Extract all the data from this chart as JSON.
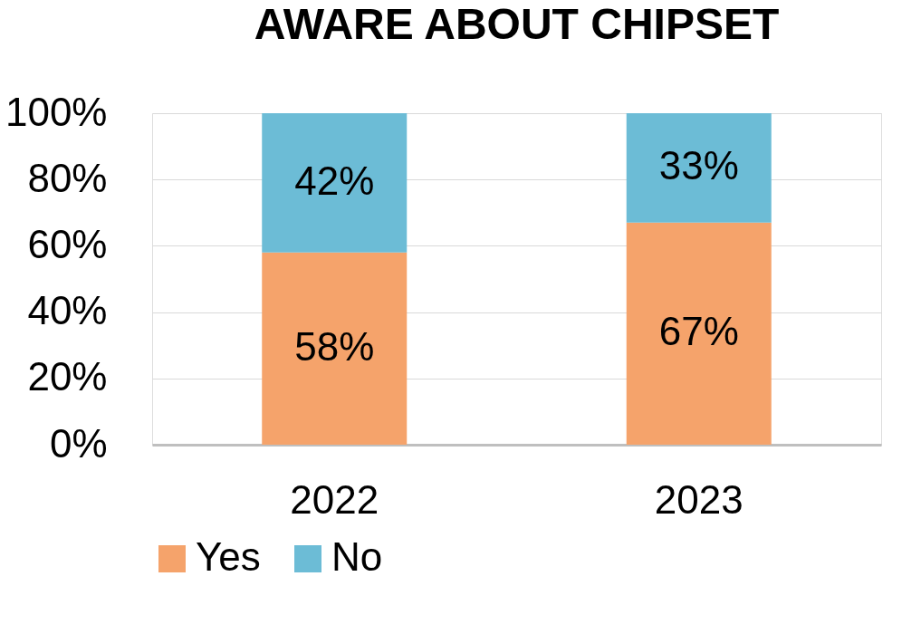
{
  "chart_data": {
    "type": "bar",
    "title": "AWARE ABOUT CHIPSET",
    "categories": [
      "2022",
      "2023"
    ],
    "stacked": true,
    "series": [
      {
        "name": "Yes",
        "color": "#f5a36b",
        "values": [
          58,
          67
        ],
        "value_labels": [
          "58%",
          "67%"
        ]
      },
      {
        "name": "No",
        "color": "#6cbcd6",
        "values": [
          42,
          33
        ],
        "value_labels": [
          "42%",
          "33%"
        ]
      }
    ],
    "ylim": [
      0,
      100
    ],
    "yticks": [
      {
        "value": 0,
        "label": "0%"
      },
      {
        "value": 20,
        "label": "20%"
      },
      {
        "value": 40,
        "label": "40%"
      },
      {
        "value": 60,
        "label": "60%"
      },
      {
        "value": 80,
        "label": "80%"
      },
      {
        "value": 100,
        "label": "100%"
      }
    ],
    "grid": "y",
    "legend": "bottom"
  }
}
